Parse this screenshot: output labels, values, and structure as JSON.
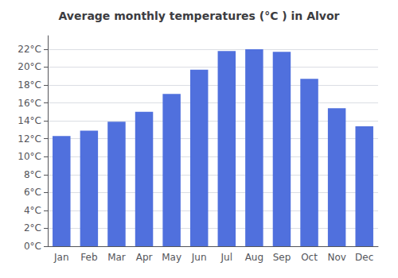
{
  "chart_data": {
    "type": "bar",
    "title": "Average monthly temperatures (°C ) in Alvor",
    "categories": [
      "Jan",
      "Feb",
      "Mar",
      "Apr",
      "May",
      "Jun",
      "Jul",
      "Aug",
      "Sep",
      "Oct",
      "Nov",
      "Dec"
    ],
    "values": [
      12.3,
      12.9,
      13.9,
      15.0,
      17.0,
      19.7,
      21.8,
      22.0,
      21.7,
      18.7,
      15.4,
      13.4
    ],
    "ylim": [
      0,
      23.5
    ],
    "yticks": [
      {
        "value": 0,
        "label": "0°C"
      },
      {
        "value": 2,
        "label": "2°C"
      },
      {
        "value": 4,
        "label": "4°C"
      },
      {
        "value": 6,
        "label": "6°C"
      },
      {
        "value": 8,
        "label": "8°C"
      },
      {
        "value": 10,
        "label": "10°C"
      },
      {
        "value": 12,
        "label": "12°C"
      },
      {
        "value": 14,
        "label": "14°C"
      },
      {
        "value": 16,
        "label": "16°C"
      },
      {
        "value": 18,
        "label": "18°C"
      },
      {
        "value": 20,
        "label": "20°C"
      },
      {
        "value": 22,
        "label": "22°C"
      }
    ],
    "grid": true
  }
}
